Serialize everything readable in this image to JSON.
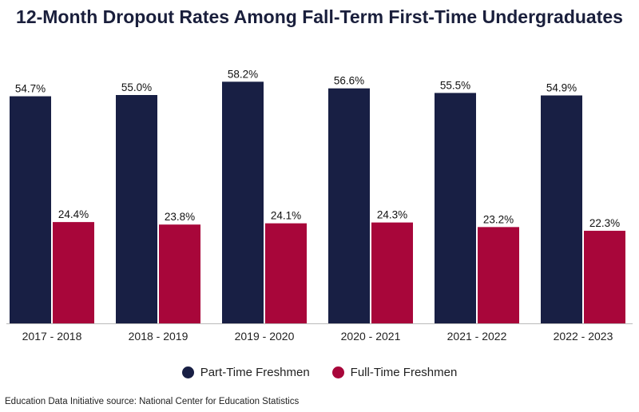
{
  "title": "12-Month Dropout Rates Among Fall-Term First-Time Undergraduates",
  "source": "Education Data Initiative source: National Center for Education Statistics",
  "colors": {
    "part_time": "#181f44",
    "full_time": "#a8063a"
  },
  "chart_data": {
    "type": "bar",
    "title": "12-Month Dropout Rates Among Fall-Term First-Time Undergraduates",
    "categories": [
      "2017 - 2018",
      "2018 - 2019",
      "2019 - 2020",
      "2020 - 2021",
      "2021 - 2022",
      "2022 - 2023"
    ],
    "series": [
      {
        "name": "Part-Time Freshmen",
        "values": [
          54.7,
          55.0,
          58.2,
          56.6,
          55.5,
          54.9
        ],
        "labels": [
          "54.7%",
          "55.0%",
          "58.2%",
          "56.6%",
          "55.5%",
          "54.9%"
        ]
      },
      {
        "name": "Full-Time Freshmen",
        "values": [
          24.4,
          23.8,
          24.1,
          24.3,
          23.2,
          22.3
        ],
        "labels": [
          "24.4%",
          "23.8%",
          "24.1%",
          "24.3%",
          "23.2%",
          "22.3%"
        ]
      }
    ],
    "xlabel": "",
    "ylabel": "",
    "ylim": [
      0,
      60
    ],
    "grid": false,
    "legend": "bottom"
  }
}
